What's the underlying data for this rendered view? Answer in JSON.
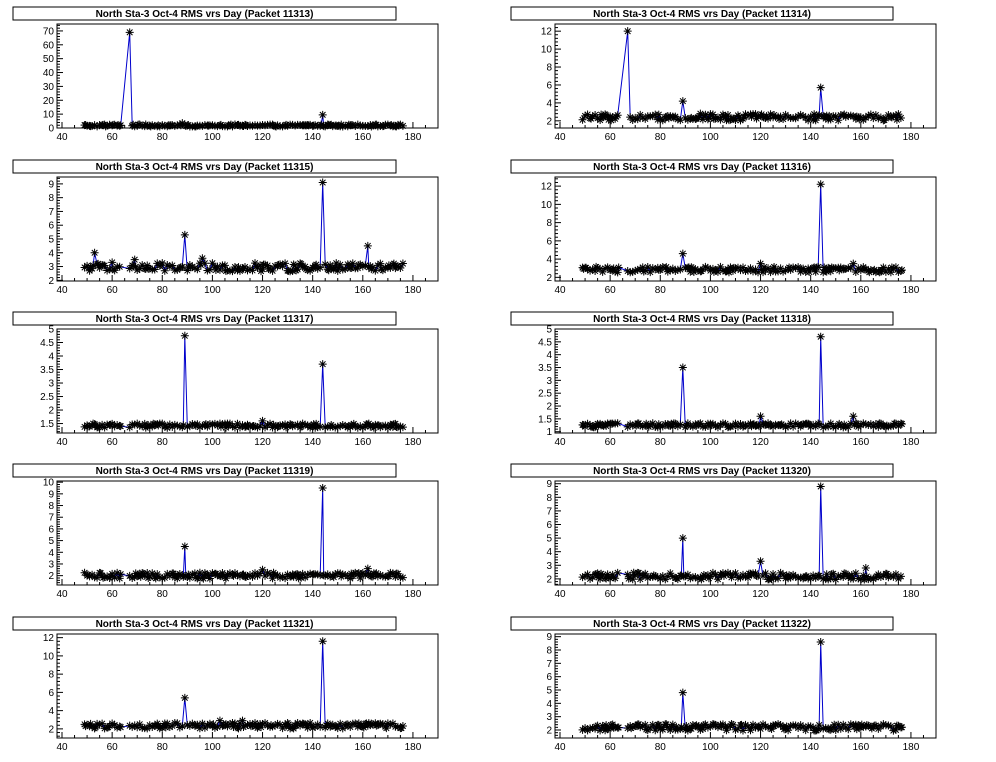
{
  "colors": {
    "line": "#0000cc",
    "marker": "#000000",
    "frame": "#000000",
    "background": "#ffffff"
  },
  "chart_data": [
    {
      "type": "line",
      "title": "North Sta-3 Oct-4 RMS vrs Day (Packet 11313)",
      "xlim": [
        38,
        190
      ],
      "ylim": [
        0,
        75
      ],
      "xticks": [
        40,
        60,
        80,
        100,
        120,
        140,
        160,
        180
      ],
      "yticks": [
        0,
        10,
        20,
        30,
        40,
        50,
        60,
        70
      ],
      "baseline": 1.8,
      "noise": 0.7,
      "spikes": [
        [
          67,
          69
        ],
        [
          88,
          3.5
        ],
        [
          144,
          9.5
        ]
      ]
    },
    {
      "type": "line",
      "title": "North Sta-3 Oct-4 RMS vrs Day (Packet 11314)",
      "xlim": [
        38,
        190
      ],
      "ylim": [
        1.2,
        12.8
      ],
      "xticks": [
        40,
        60,
        80,
        100,
        120,
        140,
        160,
        180
      ],
      "yticks": [
        2,
        4,
        6,
        8,
        10,
        12
      ],
      "baseline": 2.4,
      "noise": 0.35,
      "spikes": [
        [
          67,
          12
        ],
        [
          89,
          4.2
        ],
        [
          96,
          2.8
        ],
        [
          144,
          5.7
        ]
      ]
    },
    {
      "type": "line",
      "title": "North Sta-3 Oct-4 RMS vrs Day (Packet 11315)",
      "xlim": [
        38,
        190
      ],
      "ylim": [
        1.95,
        9.5
      ],
      "xticks": [
        40,
        60,
        80,
        100,
        120,
        140,
        160,
        180
      ],
      "yticks": [
        2,
        3,
        4,
        5,
        6,
        7,
        8,
        9
      ],
      "baseline": 2.95,
      "noise": 0.3,
      "spikes": [
        [
          53,
          4
        ],
        [
          60,
          3.3
        ],
        [
          69,
          3.5
        ],
        [
          89,
          5.3
        ],
        [
          96,
          3.6
        ],
        [
          144,
          9.1
        ],
        [
          162,
          4.5
        ]
      ]
    },
    {
      "type": "line",
      "title": "North Sta-3 Oct-4 RMS vrs Day (Packet 11316)",
      "xlim": [
        38,
        190
      ],
      "ylim": [
        1.6,
        13
      ],
      "xticks": [
        40,
        60,
        80,
        100,
        120,
        140,
        160,
        180
      ],
      "yticks": [
        2,
        4,
        6,
        8,
        10,
        12
      ],
      "baseline": 2.85,
      "noise": 0.3,
      "spikes": [
        [
          89,
          4.6
        ],
        [
          120,
          3.5
        ],
        [
          144,
          12.2
        ],
        [
          157,
          3.5
        ]
      ]
    },
    {
      "type": "line",
      "title": "North Sta-3 Oct-4 RMS vrs Day (Packet 11317)",
      "xlim": [
        38,
        190
      ],
      "ylim": [
        1.15,
        5.0
      ],
      "xticks": [
        40,
        60,
        80,
        100,
        120,
        140,
        160,
        180
      ],
      "yticks": [
        1.5,
        2,
        2.5,
        3,
        3.5,
        4,
        4.5,
        5
      ],
      "baseline": 1.42,
      "noise": 0.08,
      "spikes": [
        [
          89,
          4.75
        ],
        [
          120,
          1.6
        ],
        [
          144,
          3.7
        ]
      ]
    },
    {
      "type": "line",
      "title": "North Sta-3 Oct-4 RMS vrs Day (Packet 11318)",
      "xlim": [
        38,
        190
      ],
      "ylim": [
        0.95,
        5.0
      ],
      "xticks": [
        40,
        60,
        80,
        100,
        120,
        140,
        160,
        180
      ],
      "yticks": [
        1,
        1.5,
        2,
        2.5,
        3,
        3.5,
        4,
        4.5,
        5
      ],
      "baseline": 1.25,
      "noise": 0.08,
      "spikes": [
        [
          89,
          3.5
        ],
        [
          120,
          1.6
        ],
        [
          144,
          4.7
        ],
        [
          157,
          1.6
        ]
      ]
    },
    {
      "type": "line",
      "title": "North Sta-3 Oct-4 RMS vrs Day (Packet 11319)",
      "xlim": [
        38,
        190
      ],
      "ylim": [
        1.2,
        10.1
      ],
      "xticks": [
        40,
        60,
        80,
        100,
        120,
        140,
        160,
        180
      ],
      "yticks": [
        2,
        3,
        4,
        5,
        6,
        7,
        8,
        9,
        10
      ],
      "baseline": 2.0,
      "noise": 0.25,
      "spikes": [
        [
          89,
          4.5
        ],
        [
          120,
          2.5
        ],
        [
          144,
          9.5
        ],
        [
          162,
          2.6
        ]
      ]
    },
    {
      "type": "line",
      "title": "North Sta-3 Oct-4 RMS vrs Day (Packet 11320)",
      "xlim": [
        38,
        190
      ],
      "ylim": [
        1.55,
        9.2
      ],
      "xticks": [
        40,
        60,
        80,
        100,
        120,
        140,
        160,
        180
      ],
      "yticks": [
        2,
        3,
        4,
        5,
        6,
        7,
        8,
        9
      ],
      "baseline": 2.2,
      "noise": 0.25,
      "spikes": [
        [
          89,
          5.0
        ],
        [
          120,
          3.3
        ],
        [
          144,
          8.8
        ],
        [
          162,
          2.8
        ]
      ]
    },
    {
      "type": "line",
      "title": "North Sta-3 Oct-4 RMS vrs Day (Packet 11321)",
      "xlim": [
        38,
        190
      ],
      "ylim": [
        1.0,
        12.4
      ],
      "xticks": [
        40,
        60,
        80,
        100,
        120,
        140,
        160,
        180
      ],
      "yticks": [
        2,
        4,
        6,
        8,
        10,
        12
      ],
      "baseline": 2.35,
      "noise": 0.3,
      "spikes": [
        [
          89,
          5.4
        ],
        [
          103,
          2.9
        ],
        [
          112,
          2.9
        ],
        [
          144,
          11.6
        ]
      ]
    },
    {
      "type": "line",
      "title": "North Sta-3 Oct-4 RMS vrs Day (Packet 11322)",
      "xlim": [
        38,
        190
      ],
      "ylim": [
        1.4,
        9.2
      ],
      "xticks": [
        40,
        60,
        80,
        100,
        120,
        140,
        160,
        180
      ],
      "yticks": [
        2,
        3,
        4,
        5,
        6,
        7,
        8,
        9
      ],
      "baseline": 2.2,
      "noise": 0.25,
      "spikes": [
        [
          89,
          4.8
        ],
        [
          144,
          8.6
        ]
      ]
    }
  ]
}
